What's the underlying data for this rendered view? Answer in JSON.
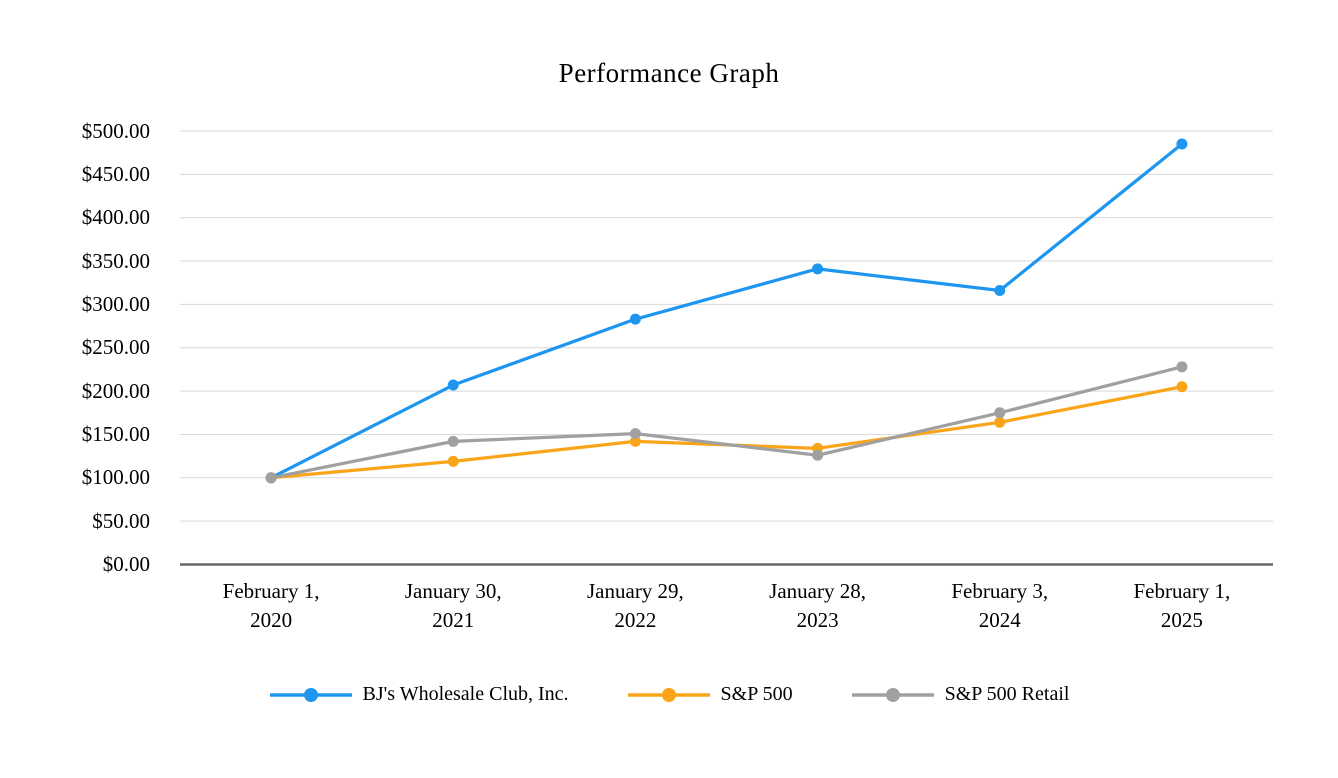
{
  "chart_data": {
    "type": "line",
    "title": "Performance Graph",
    "categories": [
      [
        "February 1,",
        "2020"
      ],
      [
        "January 30,",
        "2021"
      ],
      [
        "January 29,",
        "2022"
      ],
      [
        "January 28,",
        "2023"
      ],
      [
        "February 3,",
        "2024"
      ],
      [
        "February 1,",
        "2025"
      ]
    ],
    "series": [
      {
        "name": "BJ's Wholesale Club, Inc.",
        "color": "#1E96F0",
        "values": [
          100,
          207,
          283,
          341,
          316,
          485
        ]
      },
      {
        "name": "S&P 500",
        "color": "#FAA519",
        "values": [
          100,
          119,
          142,
          134,
          164,
          205
        ]
      },
      {
        "name": "S&P 500 Retail",
        "color": "#A0A0A0",
        "values": [
          100,
          142,
          151,
          126,
          175,
          228
        ]
      }
    ],
    "ylim": [
      0,
      500
    ],
    "y_tick_step": 50,
    "y_tick_labels": [
      "$0.00",
      "$50.00",
      "$100.00",
      "$150.00",
      "$200.00",
      "$250.00",
      "$300.00",
      "$350.00",
      "$400.00",
      "$450.00",
      "$500.00"
    ],
    "grid": "horizontal",
    "gridline_color": "#D9D9D9",
    "axis_line_color": "#666666",
    "text_color": "#000000",
    "background": "#FFFFFF",
    "legend_position": "bottom"
  }
}
